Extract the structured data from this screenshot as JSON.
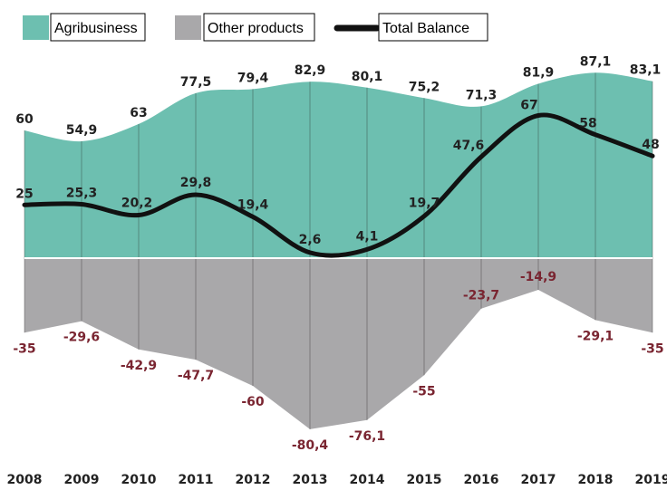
{
  "chart_data": {
    "type": "area",
    "categories": [
      "2008",
      "2009",
      "2010",
      "2011",
      "2012",
      "2013",
      "2014",
      "2015",
      "2016",
      "2017",
      "2018",
      "2019"
    ],
    "series": [
      {
        "name": "Agribusiness",
        "type": "area",
        "color": "#6dbfb0",
        "values": [
          60,
          54.9,
          63,
          77.5,
          79.4,
          82.9,
          80.1,
          75.2,
          71.3,
          81.9,
          87.1,
          83.1
        ],
        "labels": [
          "60",
          "54,9",
          "63",
          "77,5",
          "79,4",
          "82,9",
          "80,1",
          "75,2",
          "71,3",
          "81,9",
          "87,1",
          "83,1"
        ]
      },
      {
        "name": "Other products",
        "type": "area",
        "color": "#a9a8aa",
        "values": [
          -35,
          -29.6,
          -42.9,
          -47.7,
          -60,
          -80.4,
          -76.1,
          -55,
          -23.7,
          -14.9,
          -29.1,
          -35
        ],
        "labels": [
          "-35",
          "-29,6",
          "-42,9",
          "-47,7",
          "-60",
          "-80,4",
          "-76,1",
          "-55",
          "-23,7",
          "-14,9",
          "-29,1",
          "-35"
        ]
      },
      {
        "name": "Total Balance",
        "type": "line",
        "color": "#111111",
        "values": [
          25,
          25.3,
          20.2,
          29.8,
          19.4,
          2.6,
          4.1,
          19.7,
          47.6,
          67,
          58,
          48
        ],
        "labels": [
          "25",
          "25,3",
          "20,2",
          "29,8",
          "19,4",
          "2,6",
          "4,1",
          "19,7",
          "47,6",
          "67",
          "58",
          "48"
        ]
      }
    ],
    "legend": {
      "position": "top-left"
    },
    "grid": "vertical",
    "colors": {
      "label_positive": "#222222",
      "label_negative": "#7a2531",
      "zero_line": "#ffffff"
    }
  }
}
